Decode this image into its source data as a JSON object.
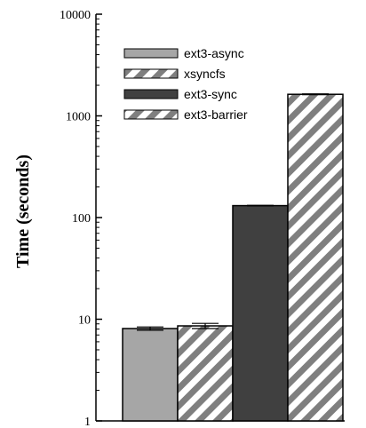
{
  "chart_data": {
    "type": "bar",
    "title": "",
    "xlabel": "",
    "ylabel": "Time (seconds)",
    "yscale": "log",
    "ylim": [
      1,
      10000
    ],
    "y_ticks": [
      "1",
      "10",
      "100",
      "1000",
      "10000"
    ],
    "grid": false,
    "legend_position": "top-left",
    "series": [
      {
        "name": "ext3-async",
        "value": 8.1,
        "error": 0.3,
        "fill": "#a6a6a6",
        "pattern": "solid"
      },
      {
        "name": "xsyncfs",
        "value": 8.6,
        "error": 0.5,
        "fill": "#7f7f7f",
        "pattern": "diagonal-stripes"
      },
      {
        "name": "ext3-sync",
        "value": 131,
        "error": 1,
        "fill": "#404040",
        "pattern": "solid"
      },
      {
        "name": "ext3-barrier",
        "value": 1630,
        "error": 15,
        "fill": "#7f7f7f",
        "pattern": "diagonal-stripes"
      }
    ]
  }
}
